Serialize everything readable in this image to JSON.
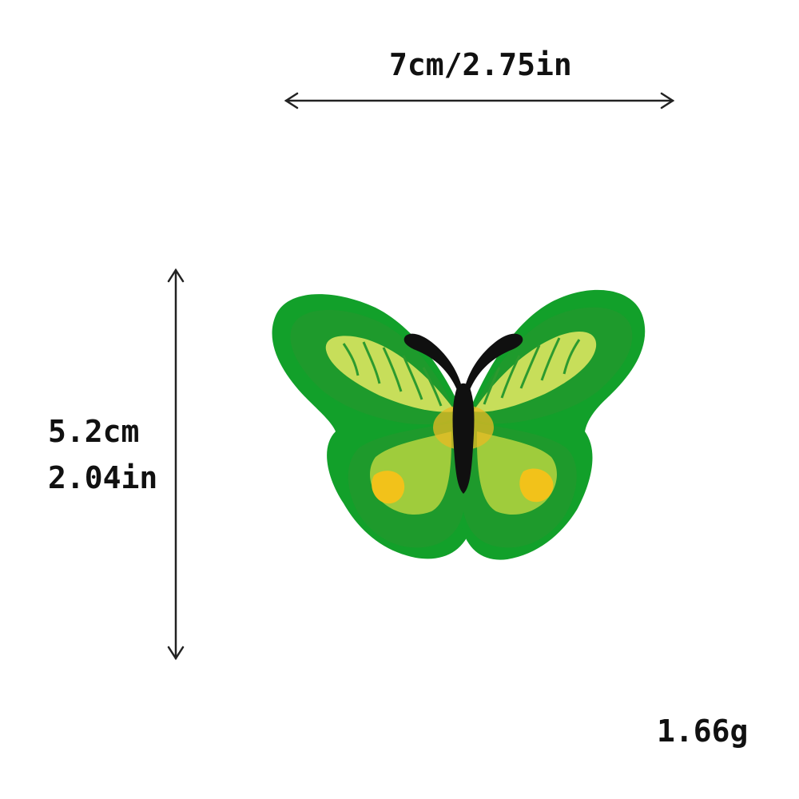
{
  "dimensions": {
    "width_label": "7cm/2.75in",
    "height_label_cm": "5.2cm",
    "height_label_in": "2.04in"
  },
  "weight_label": "1.66g",
  "product": {
    "icon": "butterfly-patch-icon",
    "colors": {
      "border": "#12a02a",
      "wing_dark": "#1e9a2c",
      "wing_mid": "#3fb53a",
      "stripe_light": "#c7de5a",
      "yellow": "#f2c21a",
      "body": "#101010",
      "arrow": "#222222"
    }
  }
}
